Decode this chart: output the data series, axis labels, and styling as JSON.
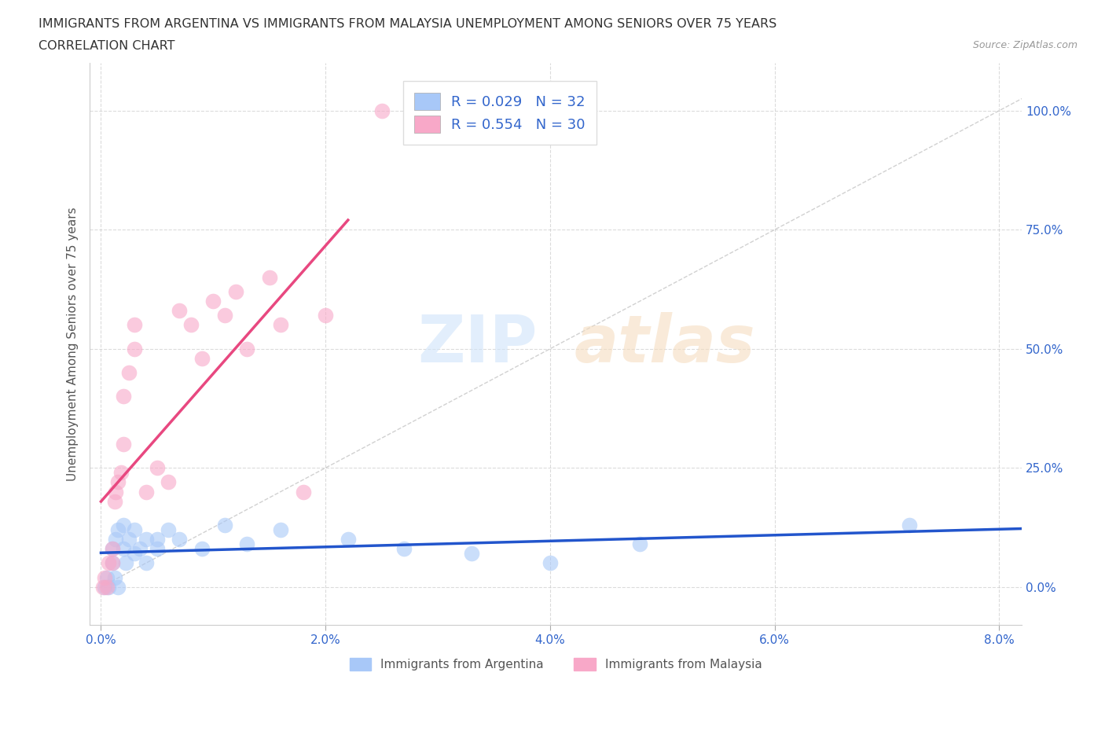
{
  "title_line1": "IMMIGRANTS FROM ARGENTINA VS IMMIGRANTS FROM MALAYSIA UNEMPLOYMENT AMONG SENIORS OVER 75 YEARS",
  "title_line2": "CORRELATION CHART",
  "source": "Source: ZipAtlas.com",
  "ylabel": "Unemployment Among Seniors over 75 years",
  "xlim": [
    -0.001,
    0.082
  ],
  "ylim": [
    -0.08,
    1.1
  ],
  "xticks": [
    0.0,
    0.02,
    0.04,
    0.06,
    0.08
  ],
  "xtick_labels": [
    "0.0%",
    "2.0%",
    "4.0%",
    "6.0%",
    "8.0%"
  ],
  "ytick_labels": [
    "0.0%",
    "25.0%",
    "50.0%",
    "75.0%",
    "100.0%"
  ],
  "yticks": [
    0.0,
    0.25,
    0.5,
    0.75,
    1.0
  ],
  "argentina_color": "#a8c8f8",
  "malaysia_color": "#f8a8c8",
  "argentina_trend_color": "#2255cc",
  "malaysia_trend_color": "#e84880",
  "diag_color": "#cccccc",
  "argentina_label": "Immigrants from Argentina",
  "malaysia_label": "Immigrants from Malaysia",
  "argentina_R": 0.029,
  "argentina_N": 32,
  "malaysia_R": 0.554,
  "malaysia_N": 30,
  "background_color": "#ffffff",
  "grid_color": "#cccccc",
  "axis_color": "#3366cc",
  "argentina_x": [
    0.0003,
    0.0005,
    0.0007,
    0.001,
    0.001,
    0.0012,
    0.0013,
    0.0015,
    0.0015,
    0.002,
    0.002,
    0.0022,
    0.0025,
    0.003,
    0.003,
    0.0035,
    0.004,
    0.004,
    0.005,
    0.005,
    0.006,
    0.007,
    0.009,
    0.011,
    0.013,
    0.016,
    0.022,
    0.027,
    0.033,
    0.04,
    0.048,
    0.072
  ],
  "argentina_y": [
    0.0,
    0.02,
    0.0,
    0.05,
    0.08,
    0.02,
    0.1,
    0.12,
    0.0,
    0.08,
    0.13,
    0.05,
    0.1,
    0.07,
    0.12,
    0.08,
    0.1,
    0.05,
    0.1,
    0.08,
    0.12,
    0.1,
    0.08,
    0.13,
    0.09,
    0.12,
    0.1,
    0.08,
    0.07,
    0.05,
    0.09,
    0.13
  ],
  "malaysia_x": [
    0.0002,
    0.0003,
    0.0005,
    0.0007,
    0.001,
    0.001,
    0.0012,
    0.0013,
    0.0015,
    0.0018,
    0.002,
    0.002,
    0.0025,
    0.003,
    0.003,
    0.004,
    0.005,
    0.006,
    0.007,
    0.008,
    0.009,
    0.01,
    0.011,
    0.012,
    0.013,
    0.015,
    0.016,
    0.018,
    0.02,
    0.025
  ],
  "malaysia_y": [
    0.0,
    0.02,
    0.0,
    0.05,
    0.05,
    0.08,
    0.18,
    0.2,
    0.22,
    0.24,
    0.3,
    0.4,
    0.45,
    0.5,
    0.55,
    0.2,
    0.25,
    0.22,
    0.58,
    0.55,
    0.48,
    0.6,
    0.57,
    0.62,
    0.5,
    0.65,
    0.55,
    0.2,
    0.57,
    1.0
  ],
  "watermark_zip_color": "#d0e4fa",
  "watermark_atlas_color": "#f5ddc0"
}
